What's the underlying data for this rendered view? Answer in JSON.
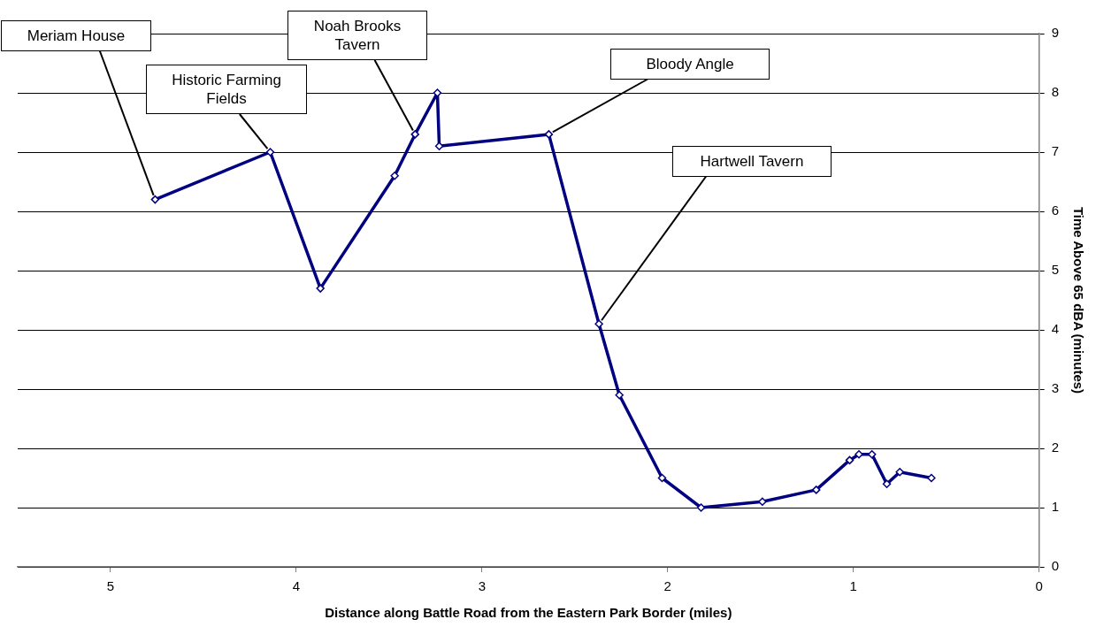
{
  "chart_data": {
    "type": "line",
    "xlabel": "Distance along Battle Road from the Eastern Park Border (miles)",
    "ylabel": "Time Above 65 dBA (minutes)",
    "x": [
      4.76,
      4.14,
      3.87,
      3.47,
      3.36,
      3.24,
      3.23,
      2.64,
      2.37,
      2.26,
      2.03,
      1.82,
      1.49,
      1.2,
      1.02,
      0.97,
      0.9,
      0.82,
      0.75,
      0.58
    ],
    "series": [
      {
        "color": "#000080",
        "values": [
          6.2,
          7.0,
          4.7,
          6.6,
          7.3,
          8.0,
          7.1,
          7.3,
          4.1,
          2.9,
          1.5,
          1.0,
          1.1,
          1.3,
          1.8,
          1.9,
          1.9,
          1.4,
          1.6,
          1.5
        ]
      }
    ],
    "xlim": [
      5.5,
      0
    ],
    "xticks": [
      5,
      4,
      3,
      2,
      1,
      0
    ],
    "ylim": [
      0,
      9
    ],
    "yticks": [
      0,
      1,
      2,
      3,
      4,
      5,
      6,
      7,
      8,
      9
    ],
    "grid": "y",
    "legend": false,
    "marker": "diamond",
    "line_style": "solid",
    "annotations": [
      {
        "text": "Meriam House",
        "x": 4.76,
        "y": 6.2
      },
      {
        "text": "Historic Farming Fields",
        "x": 4.14,
        "y": 7.0
      },
      {
        "text": "Noah Brooks Tavern",
        "x": 3.36,
        "y": 7.3
      },
      {
        "text": "Bloody Angle",
        "x": 2.64,
        "y": 7.3
      },
      {
        "text": "Hartwell Tavern",
        "x": 2.37,
        "y": 4.1
      }
    ]
  }
}
